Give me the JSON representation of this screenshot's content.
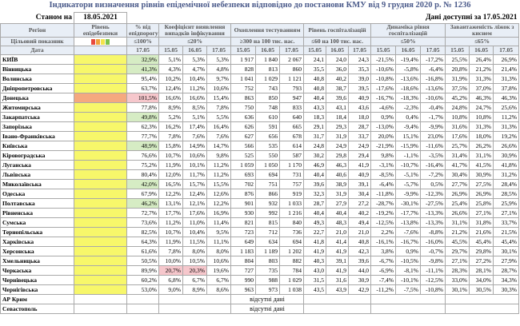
{
  "title": "Індикатори визначення рівнів епідемічної небезпеки відповідно до постанови КМУ від 9 грудня 2020 р. № 1236",
  "status": {
    "as_of_label": "Станом на",
    "as_of_date": "18.05.2021",
    "available_label": "Дані доступні за 17.05.2021"
  },
  "headers": {
    "region": "Регіон",
    "level": "Рівень епідебезпеки",
    "pct_fund": "% від епідпорогу",
    "coef_detect": "Коефіцієнт виявлення випадків інфікування",
    "testing": "Охоплення тестуванням",
    "hosp_level": "Рівень госпіталізацій",
    "hosp_dyn": "Динаміка рівня госпіталізацій",
    "beds": "Завантаженість ліжок з киснем",
    "target": "Цільовий показник",
    "date": "Дата"
  },
  "targets": {
    "pct": "≤100%",
    "coef": "≤20%",
    "testing": "≥300 на 100 тис. нас.",
    "hosp": "≤60 на 100 тис. нас.",
    "dyn": "≤50%",
    "beds": "≤65%"
  },
  "dates": {
    "d17": "17.05",
    "d15": "15.05",
    "d16": "16.05"
  },
  "level_colors": {
    "yellow": "#f7f76a",
    "orange": "#f5a97f",
    "green_highlight": "#d6ecc4",
    "red_highlight": "#f6c7cc",
    "dots": [
      "#e84a3c",
      "#f0a23a",
      "#f2e34a",
      "#7cc24a"
    ]
  },
  "rows": [
    {
      "name": "КИЇВ",
      "level": "yellow",
      "pct": "32,9%",
      "pct_hl": "green",
      "c": [
        "5,1%",
        "5,3%",
        "5,3%"
      ],
      "c_hl": [
        null,
        null,
        null
      ],
      "t": [
        "1 917",
        "1 840",
        "2 067"
      ],
      "h": [
        "24,1",
        "24,0",
        "24,3"
      ],
      "d": [
        "-21,5%",
        "-19,4%",
        "-17,2%"
      ],
      "b": [
        "25,5%",
        "26,4%",
        "26,9%"
      ]
    },
    {
      "name": "Вінницька",
      "level": "yellow",
      "pct": "41,3%",
      "pct_hl": "green",
      "c": [
        "4,3%",
        "4,7%",
        "4,8%"
      ],
      "c_hl": [
        null,
        null,
        null
      ],
      "t": [
        "828",
        "813",
        "860"
      ],
      "h": [
        "35,5",
        "36,0",
        "35,3"
      ],
      "d": [
        "-10,6%",
        "-5,8%",
        "-6,4%"
      ],
      "b": [
        "20,8%",
        "21,2%",
        "21,4%"
      ]
    },
    {
      "name": "Волинська",
      "level": "yellow",
      "pct": "95,4%",
      "pct_hl": null,
      "c": [
        "10,2%",
        "10,4%",
        "9,7%"
      ],
      "c_hl": [
        null,
        null,
        null
      ],
      "t": [
        "1 041",
        "1 029",
        "1 121"
      ],
      "h": [
        "40,8",
        "40,2",
        "39,0"
      ],
      "d": [
        "-10,8%",
        "-13,6%",
        "-16,8%"
      ],
      "b": [
        "31,9%",
        "31,3%",
        "31,3%"
      ]
    },
    {
      "name": "Дніпропетровська",
      "level": "yellow",
      "pct": "63,7%",
      "pct_hl": null,
      "c": [
        "12,4%",
        "11,2%",
        "10,6%"
      ],
      "c_hl": [
        null,
        null,
        null
      ],
      "t": [
        "752",
        "743",
        "793"
      ],
      "h": [
        "40,8",
        "38,7",
        "39,5"
      ],
      "d": [
        "-17,6%",
        "-18,6%",
        "-13,6%"
      ],
      "b": [
        "37,5%",
        "37,0%",
        "37,8%"
      ]
    },
    {
      "name": "Донецька",
      "level": "orange",
      "pct": "101,5%",
      "pct_hl": "red",
      "c": [
        "16,6%",
        "16,6%",
        "15,4%"
      ],
      "c_hl": [
        null,
        null,
        null
      ],
      "t": [
        "863",
        "850",
        "947"
      ],
      "h": [
        "40,4",
        "39,6",
        "40,9"
      ],
      "d": [
        "-16,7%",
        "-18,3%",
        "-10,6%"
      ],
      "b": [
        "45,2%",
        "46,3%",
        "46,3%"
      ]
    },
    {
      "name": "Житомирська",
      "level": "yellow",
      "pct": "77,8%",
      "pct_hl": null,
      "c": [
        "8,9%",
        "8,5%",
        "7,8%"
      ],
      "c_hl": [
        null,
        null,
        null
      ],
      "t": [
        "750",
        "748",
        "833"
      ],
      "h": [
        "43,3",
        "43,1",
        "43,6"
      ],
      "d": [
        "-4,6%",
        "-2,3%",
        "-0,4%"
      ],
      "b": [
        "24,8%",
        "24,7%",
        "25,6%"
      ]
    },
    {
      "name": "Закарпатська",
      "level": "yellow",
      "pct": "49,8%",
      "pct_hl": "green",
      "c": [
        "5,2%",
        "5,1%",
        "5,5%"
      ],
      "c_hl": [
        null,
        null,
        null
      ],
      "t": [
        "636",
        "610",
        "640"
      ],
      "h": [
        "18,3",
        "18,4",
        "18,0"
      ],
      "d": [
        "0,9%",
        "0,4%",
        "-1,7%"
      ],
      "b": [
        "10,8%",
        "10,8%",
        "11,2%"
      ]
    },
    {
      "name": "Запорізька",
      "level": "yellow",
      "pct": "62,3%",
      "pct_hl": null,
      "c": [
        "16,2%",
        "17,4%",
        "16,4%"
      ],
      "c_hl": [
        null,
        null,
        null
      ],
      "t": [
        "626",
        "591",
        "665"
      ],
      "h": [
        "29,1",
        "29,3",
        "28,7"
      ],
      "d": [
        "-13,0%",
        "-9,4%",
        "-9,9%"
      ],
      "b": [
        "31,6%",
        "31,3%",
        "31,3%"
      ]
    },
    {
      "name": "Івано-Франківська",
      "level": "yellow",
      "pct": "77,7%",
      "pct_hl": null,
      "c": [
        "7,8%",
        "7,6%",
        "7,6%"
      ],
      "c_hl": [
        null,
        null,
        null
      ],
      "t": [
        "627",
        "656",
        "678"
      ],
      "h": [
        "31,7",
        "31,9",
        "33,7"
      ],
      "d": [
        "20,0%",
        "15,1%",
        "23,0%"
      ],
      "b": [
        "17,6%",
        "18,0%",
        "19,2%"
      ]
    },
    {
      "name": "Київська",
      "level": "yellow",
      "pct": "48,9%",
      "pct_hl": "green",
      "c": [
        "15,8%",
        "14,9%",
        "14,7%"
      ],
      "c_hl": [
        null,
        null,
        null
      ],
      "t": [
        "566",
        "535",
        "614"
      ],
      "h": [
        "24,8",
        "24,9",
        "24,9"
      ],
      "d": [
        "-21,9%",
        "-15,9%",
        "-11,6%"
      ],
      "b": [
        "25,7%",
        "26,2%",
        "26,6%"
      ]
    },
    {
      "name": "Кіровоградська",
      "level": "yellow",
      "pct": "76,6%",
      "pct_hl": null,
      "c": [
        "10,7%",
        "10,6%",
        "9,8%"
      ],
      "c_hl": [
        null,
        null,
        null
      ],
      "t": [
        "525",
        "550",
        "587"
      ],
      "h": [
        "30,2",
        "29,8",
        "29,4"
      ],
      "d": [
        "9,8%",
        "-1,1%",
        "-3,5%"
      ],
      "b": [
        "31,4%",
        "31,1%",
        "30,9%"
      ]
    },
    {
      "name": "Луганська",
      "level": "yellow",
      "pct": "75,2%",
      "pct_hl": null,
      "c": [
        "11,9%",
        "10,1%",
        "11,2%"
      ],
      "c_hl": [
        null,
        null,
        null
      ],
      "t": [
        "1 059",
        "1 050",
        "1 170"
      ],
      "h": [
        "46,9",
        "46,3",
        "41,9"
      ],
      "d": [
        "-3,1%",
        "-10,7%",
        "-16,4%"
      ],
      "b": [
        "41,7%",
        "41,5%",
        "41,8%"
      ]
    },
    {
      "name": "Львівська",
      "level": "yellow",
      "pct": "80,4%",
      "pct_hl": null,
      "c": [
        "12,0%",
        "11,7%",
        "11,2%"
      ],
      "c_hl": [
        null,
        null,
        null
      ],
      "t": [
        "693",
        "694",
        "731"
      ],
      "h": [
        "40,4",
        "40,6",
        "40,9"
      ],
      "d": [
        "-8,5%",
        "-5,1%",
        "-7,2%"
      ],
      "b": [
        "30,4%",
        "30,9%",
        "31,2%"
      ]
    },
    {
      "name": "Миколаївська",
      "level": "yellow",
      "pct": "42,0%",
      "pct_hl": "green",
      "c": [
        "16,5%",
        "15,7%",
        "15,5%"
      ],
      "c_hl": [
        null,
        null,
        null
      ],
      "t": [
        "702",
        "751",
        "757"
      ],
      "h": [
        "39,6",
        "38,9",
        "39,1"
      ],
      "d": [
        "-6,4%",
        "-5,7%",
        "0,5%"
      ],
      "b": [
        "27,7%",
        "27,5%",
        "28,4%"
      ]
    },
    {
      "name": "Одеська",
      "level": "yellow",
      "pct": "67,9%",
      "pct_hl": null,
      "c": [
        "12,2%",
        "12,4%",
        "12,6%"
      ],
      "c_hl": [
        null,
        null,
        null
      ],
      "t": [
        "876",
        "866",
        "919"
      ],
      "h": [
        "32,3",
        "31,9",
        "30,4"
      ],
      "d": [
        "-11,8%",
        "-9,9%",
        "-12,3%"
      ],
      "b": [
        "26,9%",
        "26,9%",
        "28,5%"
      ]
    },
    {
      "name": "Полтавська",
      "level": "yellow",
      "pct": "46,2%",
      "pct_hl": "green",
      "c": [
        "13,1%",
        "12,1%",
        "12,2%"
      ],
      "c_hl": [
        null,
        null,
        null
      ],
      "t": [
        "901",
        "932",
        "1 033"
      ],
      "h": [
        "28,7",
        "27,9",
        "27,2"
      ],
      "d": [
        "-28,7%",
        "-30,1%",
        "-27,5%"
      ],
      "b": [
        "25,4%",
        "25,8%",
        "25,9%"
      ]
    },
    {
      "name": "Рівненська",
      "level": "yellow",
      "pct": "72,7%",
      "pct_hl": null,
      "c": [
        "17,7%",
        "17,6%",
        "16,9%"
      ],
      "c_hl": [
        null,
        null,
        null
      ],
      "t": [
        "930",
        "992",
        "1 216"
      ],
      "h": [
        "40,4",
        "40,4",
        "40,2"
      ],
      "d": [
        "-19,2%",
        "-17,7%",
        "-13,3%"
      ],
      "b": [
        "26,6%",
        "27,1%",
        "27,1%"
      ]
    },
    {
      "name": "Сумська",
      "level": "yellow",
      "pct": "73,6%",
      "pct_hl": null,
      "c": [
        "11,2%",
        "11,0%",
        "11,4%"
      ],
      "c_hl": [
        null,
        null,
        null
      ],
      "t": [
        "821",
        "815",
        "840"
      ],
      "h": [
        "49,3",
        "48,3",
        "49,4"
      ],
      "d": [
        "-12,5%",
        "-13,8%",
        "-13,3%"
      ],
      "b": [
        "31,1%",
        "31,8%",
        "33,7%"
      ]
    },
    {
      "name": "Тернопільська",
      "level": "yellow",
      "pct": "82,5%",
      "pct_hl": null,
      "c": [
        "10,7%",
        "10,4%",
        "9,5%"
      ],
      "c_hl": [
        null,
        null,
        null
      ],
      "t": [
        "723",
        "712",
        "736"
      ],
      "h": [
        "22,7",
        "21,0",
        "21,0"
      ],
      "d": [
        "2,2%",
        "-7,6%",
        "-8,8%"
      ],
      "b": [
        "21,2%",
        "21,6%",
        "21,5%"
      ]
    },
    {
      "name": "Харківська",
      "level": "yellow",
      "pct": "64,3%",
      "pct_hl": null,
      "c": [
        "11,9%",
        "11,5%",
        "11,1%"
      ],
      "c_hl": [
        null,
        null,
        null
      ],
      "t": [
        "649",
        "634",
        "694"
      ],
      "h": [
        "41,8",
        "41,4",
        "40,8"
      ],
      "d": [
        "-16,1%",
        "-16,7%",
        "-16,0%"
      ],
      "b": [
        "45,5%",
        "45,4%",
        "45,4%"
      ]
    },
    {
      "name": "Херсонська",
      "level": "yellow",
      "pct": "61,6%",
      "pct_hl": null,
      "c": [
        "7,8%",
        "8,0%",
        "8,0%"
      ],
      "c_hl": [
        null,
        null,
        null
      ],
      "t": [
        "1 183",
        "1 189",
        "1 202"
      ],
      "h": [
        "41,9",
        "41,9",
        "42,3"
      ],
      "d": [
        "3,8%",
        "0,9%",
        "-0,7%"
      ],
      "b": [
        "29,7%",
        "29,8%",
        "30,1%"
      ]
    },
    {
      "name": "Хмельницька",
      "level": "yellow",
      "pct": "50,5%",
      "pct_hl": null,
      "c": [
        "10,0%",
        "10,5%",
        "10,6%"
      ],
      "c_hl": [
        null,
        null,
        null
      ],
      "t": [
        "804",
        "803",
        "882"
      ],
      "h": [
        "40,3",
        "39,1",
        "39,6"
      ],
      "d": [
        "-6,7%",
        "-10,5%",
        "-9,8%"
      ],
      "b": [
        "27,1%",
        "27,2%",
        "27,9%"
      ]
    },
    {
      "name": "Черкаська",
      "level": "yellow",
      "pct": "89,9%",
      "pct_hl": null,
      "c": [
        "20,7%",
        "20,3%",
        "19,6%"
      ],
      "c_hl": [
        "red",
        "red",
        null
      ],
      "t": [
        "727",
        "735",
        "784"
      ],
      "h": [
        "43,0",
        "41,9",
        "44,0"
      ],
      "d": [
        "-6,9%",
        "-8,1%",
        "-11,1%"
      ],
      "b": [
        "28,3%",
        "28,1%",
        "28,7%"
      ]
    },
    {
      "name": "Чернівецька",
      "level": "yellow",
      "pct": "60,2%",
      "pct_hl": null,
      "c": [
        "6,8%",
        "6,7%",
        "6,7%"
      ],
      "c_hl": [
        null,
        null,
        null
      ],
      "t": [
        "990",
        "988",
        "1 029"
      ],
      "h": [
        "31,5",
        "31,6",
        "30,9"
      ],
      "d": [
        "-7,4%",
        "-10,1%",
        "-12,5%"
      ],
      "b": [
        "33,0%",
        "34,0%",
        "34,3%"
      ]
    },
    {
      "name": "Чернігівська",
      "level": "yellow",
      "pct": "53,0%",
      "pct_hl": null,
      "c": [
        "9,0%",
        "8,9%",
        "8,6%"
      ],
      "c_hl": [
        null,
        null,
        null
      ],
      "t": [
        "963",
        "973",
        "1 038"
      ],
      "h": [
        "43,5",
        "43,9",
        "42,9"
      ],
      "d": [
        "-11,2%",
        "-7,5%",
        "-10,8%"
      ],
      "b": [
        "30,1%",
        "30,5%",
        "30,3%"
      ]
    }
  ],
  "na_rows": [
    {
      "name": "АР Крим",
      "text": "відсутні дані"
    },
    {
      "name": "Севастополь",
      "text": "відсутні дані"
    }
  ]
}
